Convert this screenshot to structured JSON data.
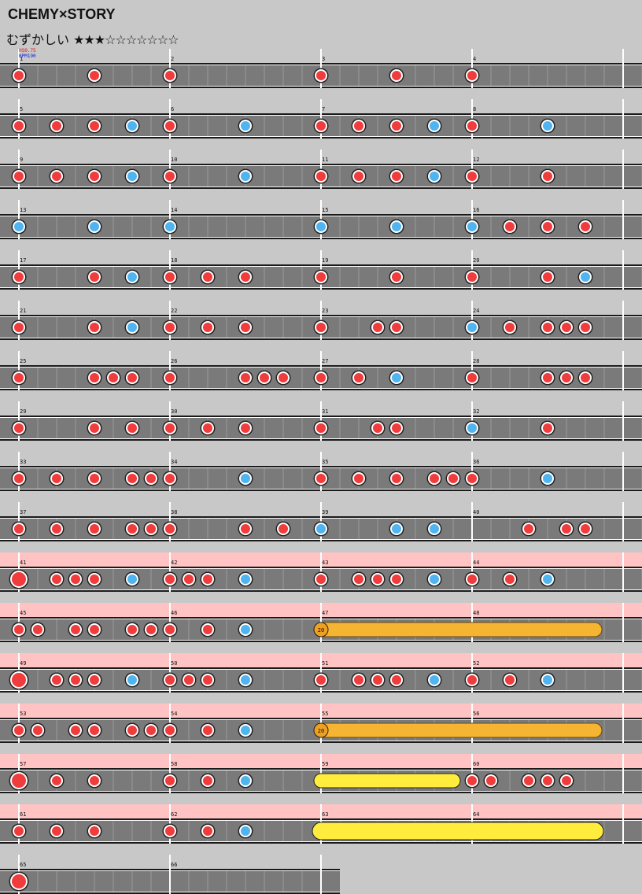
{
  "header": {
    "title": "CHEMY×STORY",
    "difficulty_label": "むずかしい",
    "stars_filled": "★★★",
    "stars_empty": "☆☆☆☆☆☆☆",
    "star_level": 3,
    "star_max": 10
  },
  "chart_info": {
    "hs_label": "HS0.75",
    "bpm_label": "BPM190"
  },
  "colors": {
    "don": "#f03c3c",
    "ka": "#50b4f0",
    "balloon": "#f5b432",
    "drumroll": "#ffec3c",
    "gogo_band": "#ffc3c3",
    "lane": "#7a7a7a"
  },
  "rows": [
    {
      "measures": [
        1,
        2,
        3,
        4
      ],
      "gogo": false,
      "notes": [
        [
          0,
          "d"
        ],
        [
          4,
          "d"
        ],
        [
          8,
          "d"
        ],
        [
          16,
          "d"
        ],
        [
          20,
          "d"
        ],
        [
          24,
          "d"
        ]
      ]
    },
    {
      "measures": [
        5,
        6,
        7,
        8
      ],
      "gogo": false,
      "notes": [
        [
          0,
          "d"
        ],
        [
          2,
          "d"
        ],
        [
          4,
          "d"
        ],
        [
          6,
          "k"
        ],
        [
          8,
          "d"
        ],
        [
          12,
          "k"
        ],
        [
          16,
          "d"
        ],
        [
          18,
          "d"
        ],
        [
          20,
          "d"
        ],
        [
          22,
          "k"
        ],
        [
          24,
          "d"
        ],
        [
          28,
          "k"
        ]
      ]
    },
    {
      "measures": [
        9,
        10,
        11,
        12
      ],
      "gogo": false,
      "notes": [
        [
          0,
          "d"
        ],
        [
          2,
          "d"
        ],
        [
          4,
          "d"
        ],
        [
          6,
          "k"
        ],
        [
          8,
          "d"
        ],
        [
          12,
          "k"
        ],
        [
          16,
          "d"
        ],
        [
          18,
          "d"
        ],
        [
          20,
          "d"
        ],
        [
          22,
          "k"
        ],
        [
          24,
          "d"
        ],
        [
          28,
          "d"
        ]
      ]
    },
    {
      "measures": [
        13,
        14,
        15,
        16
      ],
      "gogo": false,
      "notes": [
        [
          0,
          "k"
        ],
        [
          4,
          "k"
        ],
        [
          8,
          "k"
        ],
        [
          16,
          "k"
        ],
        [
          20,
          "k"
        ],
        [
          24,
          "k"
        ],
        [
          26,
          "d"
        ],
        [
          28,
          "d"
        ],
        [
          30,
          "d"
        ]
      ]
    },
    {
      "measures": [
        17,
        18,
        19,
        20
      ],
      "gogo": false,
      "notes": [
        [
          0,
          "d"
        ],
        [
          4,
          "d"
        ],
        [
          6,
          "k"
        ],
        [
          8,
          "d"
        ],
        [
          10,
          "d"
        ],
        [
          12,
          "d"
        ],
        [
          16,
          "d"
        ],
        [
          20,
          "d"
        ],
        [
          24,
          "d"
        ],
        [
          28,
          "d"
        ],
        [
          30,
          "k"
        ]
      ]
    },
    {
      "measures": [
        21,
        22,
        23,
        24
      ],
      "gogo": false,
      "notes": [
        [
          0,
          "d"
        ],
        [
          4,
          "d"
        ],
        [
          6,
          "k"
        ],
        [
          8,
          "d"
        ],
        [
          10,
          "d"
        ],
        [
          12,
          "d"
        ],
        [
          16,
          "d"
        ],
        [
          19,
          "d"
        ],
        [
          20,
          "d"
        ],
        [
          24,
          "k"
        ],
        [
          26,
          "d"
        ],
        [
          28,
          "d"
        ],
        [
          29,
          "d"
        ],
        [
          30,
          "d"
        ]
      ]
    },
    {
      "measures": [
        25,
        26,
        27,
        28
      ],
      "gogo": false,
      "notes": [
        [
          0,
          "d"
        ],
        [
          4,
          "d"
        ],
        [
          5,
          "d"
        ],
        [
          6,
          "d"
        ],
        [
          8,
          "d"
        ],
        [
          12,
          "d"
        ],
        [
          13,
          "d"
        ],
        [
          14,
          "d"
        ],
        [
          16,
          "d"
        ],
        [
          18,
          "d"
        ],
        [
          20,
          "k"
        ],
        [
          24,
          "d"
        ],
        [
          28,
          "d"
        ],
        [
          29,
          "d"
        ],
        [
          30,
          "d"
        ]
      ]
    },
    {
      "measures": [
        29,
        30,
        31,
        32
      ],
      "gogo": false,
      "notes": [
        [
          0,
          "d"
        ],
        [
          4,
          "d"
        ],
        [
          6,
          "d"
        ],
        [
          8,
          "d"
        ],
        [
          10,
          "d"
        ],
        [
          12,
          "d"
        ],
        [
          16,
          "d"
        ],
        [
          19,
          "d"
        ],
        [
          20,
          "d"
        ],
        [
          24,
          "k"
        ],
        [
          28,
          "d"
        ]
      ]
    },
    {
      "measures": [
        33,
        34,
        35,
        36
      ],
      "gogo": false,
      "notes": [
        [
          0,
          "d"
        ],
        [
          2,
          "d"
        ],
        [
          4,
          "d"
        ],
        [
          6,
          "d"
        ],
        [
          7,
          "d"
        ],
        [
          8,
          "d"
        ],
        [
          12,
          "k"
        ],
        [
          16,
          "d"
        ],
        [
          18,
          "d"
        ],
        [
          20,
          "d"
        ],
        [
          22,
          "d"
        ],
        [
          23,
          "d"
        ],
        [
          24,
          "d"
        ],
        [
          28,
          "k"
        ]
      ]
    },
    {
      "measures": [
        37,
        38,
        39,
        40
      ],
      "gogo": false,
      "notes": [
        [
          0,
          "d"
        ],
        [
          2,
          "d"
        ],
        [
          4,
          "d"
        ],
        [
          6,
          "d"
        ],
        [
          7,
          "d"
        ],
        [
          8,
          "d"
        ],
        [
          12,
          "d"
        ],
        [
          14,
          "d"
        ],
        [
          16,
          "k"
        ],
        [
          20,
          "k"
        ],
        [
          22,
          "k"
        ],
        [
          27,
          "d"
        ],
        [
          29,
          "d"
        ],
        [
          30,
          "d"
        ]
      ]
    },
    {
      "measures": [
        41,
        42,
        43,
        44
      ],
      "gogo": true,
      "notes": [
        [
          0,
          "D"
        ],
        [
          2,
          "d"
        ],
        [
          3,
          "d"
        ],
        [
          4,
          "d"
        ],
        [
          6,
          "k"
        ],
        [
          8,
          "d"
        ],
        [
          9,
          "d"
        ],
        [
          10,
          "d"
        ],
        [
          12,
          "k"
        ],
        [
          16,
          "d"
        ],
        [
          18,
          "d"
        ],
        [
          19,
          "d"
        ],
        [
          20,
          "d"
        ],
        [
          22,
          "k"
        ],
        [
          24,
          "d"
        ],
        [
          26,
          "d"
        ],
        [
          28,
          "k"
        ]
      ]
    },
    {
      "measures": [
        45,
        46,
        47,
        48
      ],
      "gogo": true,
      "notes": [
        [
          0,
          "d"
        ],
        [
          1,
          "d"
        ],
        [
          3,
          "d"
        ],
        [
          4,
          "d"
        ],
        [
          6,
          "d"
        ],
        [
          7,
          "d"
        ],
        [
          8,
          "d"
        ],
        [
          10,
          "d"
        ],
        [
          12,
          "k"
        ]
      ],
      "rolls": [
        {
          "type": "balloon",
          "start": 16,
          "end": 30.5,
          "count": "20"
        }
      ]
    },
    {
      "measures": [
        49,
        50,
        51,
        52
      ],
      "gogo": true,
      "notes": [
        [
          0,
          "D"
        ],
        [
          2,
          "d"
        ],
        [
          3,
          "d"
        ],
        [
          4,
          "d"
        ],
        [
          6,
          "k"
        ],
        [
          8,
          "d"
        ],
        [
          9,
          "d"
        ],
        [
          10,
          "d"
        ],
        [
          12,
          "k"
        ],
        [
          16,
          "d"
        ],
        [
          18,
          "d"
        ],
        [
          19,
          "d"
        ],
        [
          20,
          "d"
        ],
        [
          22,
          "k"
        ],
        [
          24,
          "d"
        ],
        [
          26,
          "d"
        ],
        [
          28,
          "k"
        ]
      ]
    },
    {
      "measures": [
        53,
        54,
        55,
        56
      ],
      "gogo": true,
      "notes": [
        [
          0,
          "d"
        ],
        [
          1,
          "d"
        ],
        [
          3,
          "d"
        ],
        [
          4,
          "d"
        ],
        [
          6,
          "d"
        ],
        [
          7,
          "d"
        ],
        [
          8,
          "d"
        ],
        [
          10,
          "d"
        ],
        [
          12,
          "k"
        ]
      ],
      "rolls": [
        {
          "type": "balloon",
          "start": 16,
          "end": 30.5,
          "count": "20"
        }
      ]
    },
    {
      "measures": [
        57,
        58,
        59,
        60
      ],
      "gogo": true,
      "notes": [
        [
          0,
          "D"
        ],
        [
          2,
          "d"
        ],
        [
          4,
          "d"
        ],
        [
          8,
          "d"
        ],
        [
          10,
          "d"
        ],
        [
          12,
          "k"
        ],
        [
          24,
          "d"
        ],
        [
          25,
          "d"
        ],
        [
          27,
          "d"
        ],
        [
          28,
          "d"
        ],
        [
          29,
          "d"
        ]
      ],
      "rolls": [
        {
          "type": "roll",
          "start": 16,
          "end": 23
        }
      ]
    },
    {
      "measures": [
        61,
        62,
        63,
        64
      ],
      "gogo": true,
      "notes": [
        [
          0,
          "d"
        ],
        [
          2,
          "d"
        ],
        [
          4,
          "d"
        ],
        [
          8,
          "d"
        ],
        [
          10,
          "d"
        ],
        [
          12,
          "k"
        ]
      ],
      "rolls": [
        {
          "type": "rollbig",
          "start": 16,
          "end": 30.5
        }
      ]
    },
    {
      "measures": [
        65,
        66
      ],
      "gogo": false,
      "notes": [
        [
          0,
          "D"
        ]
      ]
    }
  ]
}
